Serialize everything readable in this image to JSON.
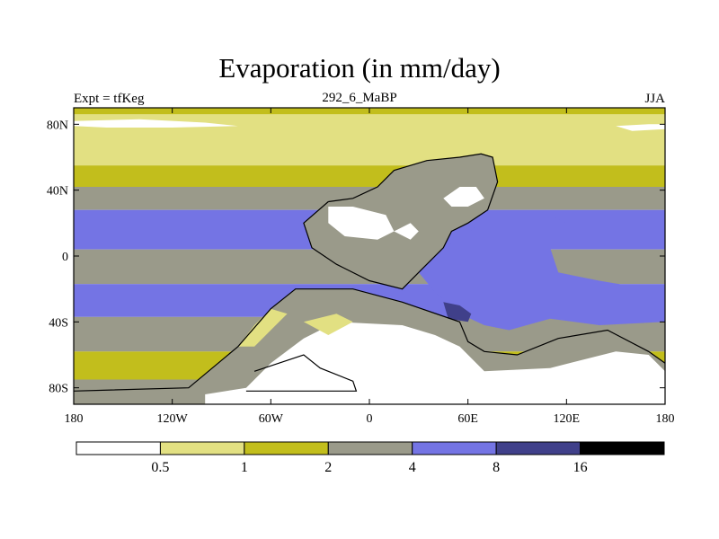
{
  "chart_data": {
    "type": "heatmap",
    "title": "Evaporation (in mm/day)",
    "subtitle_left": "Expt = tfKeg",
    "subtitle_center": "292_6_MaBP",
    "subtitle_right": "JJA",
    "xlim": [
      -180,
      180
    ],
    "ylim": [
      -90,
      90
    ],
    "x_ticks": [
      {
        "value": -180,
        "label": "180"
      },
      {
        "value": -120,
        "label": "120W"
      },
      {
        "value": -60,
        "label": "60W"
      },
      {
        "value": 0,
        "label": "0"
      },
      {
        "value": 60,
        "label": "60E"
      },
      {
        "value": 120,
        "label": "120E"
      },
      {
        "value": 180,
        "label": "180"
      }
    ],
    "y_ticks": [
      {
        "value": 80,
        "label": "80N"
      },
      {
        "value": 40,
        "label": "40N"
      },
      {
        "value": 0,
        "label": "0"
      },
      {
        "value": -40,
        "label": "40S"
      },
      {
        "value": -80,
        "label": "80S"
      }
    ],
    "colorbar": {
      "levels": [
        "0.5",
        "1",
        "2",
        "4",
        "8",
        "16"
      ],
      "colors": [
        "#ffffff",
        "#e2e082",
        "#c2be1c",
        "#9a9a8a",
        "#7474e4",
        "#40408a",
        "#000000"
      ]
    },
    "zonal_bands": [
      {
        "lat_top": 90,
        "lat_bottom": 86,
        "class": 2
      },
      {
        "lat_top": 86,
        "lat_bottom": 75,
        "class": 1
      },
      {
        "lat_top": 75,
        "lat_bottom": 55,
        "class": 1
      },
      {
        "lat_top": 55,
        "lat_bottom": 42,
        "class": 2
      },
      {
        "lat_top": 42,
        "lat_bottom": 28,
        "class": 3
      },
      {
        "lat_top": 28,
        "lat_bottom": 4,
        "class": 4
      },
      {
        "lat_top": 4,
        "lat_bottom": -17,
        "class": 3
      },
      {
        "lat_top": -17,
        "lat_bottom": -37,
        "class": 4
      },
      {
        "lat_top": -37,
        "lat_bottom": -58,
        "class": 3
      },
      {
        "lat_top": -58,
        "lat_bottom": -75,
        "class": 2
      },
      {
        "lat_top": -75,
        "lat_bottom": -84,
        "class": 3
      },
      {
        "lat_top": -84,
        "lat_bottom": -90,
        "class": 0
      }
    ],
    "regions": [
      {
        "name": "arctic-low",
        "class": 0,
        "lonlat": [
          [
            -180,
            82
          ],
          [
            -140,
            83
          ],
          [
            -100,
            81
          ],
          [
            -80,
            79
          ],
          [
            -120,
            78
          ],
          [
            -160,
            78
          ],
          [
            -180,
            79
          ]
        ]
      },
      {
        "name": "arctic-low-east",
        "class": 0,
        "lonlat": [
          [
            150,
            79
          ],
          [
            170,
            80
          ],
          [
            180,
            80
          ],
          [
            180,
            77
          ],
          [
            160,
            76
          ]
        ]
      },
      {
        "name": "land-north",
        "class": 3,
        "lonlat": [
          [
            -25,
            33
          ],
          [
            -10,
            35
          ],
          [
            5,
            42
          ],
          [
            15,
            52
          ],
          [
            35,
            58
          ],
          [
            55,
            60
          ],
          [
            68,
            62
          ],
          [
            75,
            60
          ],
          [
            78,
            45
          ],
          [
            72,
            28
          ],
          [
            60,
            20
          ],
          [
            50,
            15
          ],
          [
            45,
            5
          ],
          [
            30,
            -10
          ],
          [
            20,
            -20
          ],
          [
            0,
            -15
          ],
          [
            -20,
            -5
          ],
          [
            -35,
            5
          ],
          [
            -40,
            20
          ]
        ]
      },
      {
        "name": "land-south",
        "class": 3,
        "lonlat": [
          [
            -45,
            -20
          ],
          [
            -30,
            -20
          ],
          [
            -10,
            -20
          ],
          [
            20,
            -28
          ],
          [
            55,
            -40
          ],
          [
            60,
            -52
          ],
          [
            70,
            -58
          ],
          [
            90,
            -60
          ],
          [
            115,
            -50
          ],
          [
            145,
            -45
          ],
          [
            170,
            -58
          ],
          [
            180,
            -65
          ],
          [
            180,
            -90
          ],
          [
            -180,
            -90
          ],
          [
            -180,
            -80
          ],
          [
            -110,
            -80
          ],
          [
            -80,
            -55
          ],
          [
            -60,
            -32
          ]
        ]
      },
      {
        "name": "ocean-tropic",
        "class": 4,
        "lonlat": [
          [
            30,
            -10
          ],
          [
            45,
            5
          ],
          [
            55,
            10
          ],
          [
            65,
            18
          ],
          [
            78,
            20
          ],
          [
            95,
            25
          ],
          [
            110,
            25
          ],
          [
            120,
            20
          ],
          [
            125,
            15
          ],
          [
            110,
            5
          ],
          [
            115,
            -10
          ],
          [
            140,
            -15
          ],
          [
            170,
            -20
          ],
          [
            180,
            -18
          ],
          [
            180,
            -40
          ],
          [
            140,
            -42
          ],
          [
            110,
            -38
          ],
          [
            85,
            -45
          ],
          [
            70,
            -42
          ],
          [
            55,
            -35
          ],
          [
            40,
            -22
          ]
        ]
      },
      {
        "name": "deep-patch",
        "class": 5,
        "lonlat": [
          [
            45,
            -28
          ],
          [
            55,
            -30
          ],
          [
            62,
            -35
          ],
          [
            60,
            -40
          ],
          [
            48,
            -38
          ]
        ]
      },
      {
        "name": "antarctica-ice",
        "class": 0,
        "lonlat": [
          [
            -75,
            -80
          ],
          [
            -60,
            -65
          ],
          [
            -40,
            -50
          ],
          [
            -20,
            -40
          ],
          [
            20,
            -42
          ],
          [
            40,
            -48
          ],
          [
            55,
            -55
          ],
          [
            70,
            -70
          ],
          [
            110,
            -68
          ],
          [
            150,
            -58
          ],
          [
            170,
            -60
          ],
          [
            180,
            -70
          ],
          [
            180,
            -90
          ],
          [
            -100,
            -90
          ],
          [
            -100,
            -84
          ]
        ]
      },
      {
        "name": "desert-1",
        "class": 0,
        "lonlat": [
          [
            -25,
            30
          ],
          [
            -10,
            30
          ],
          [
            10,
            25
          ],
          [
            15,
            15
          ],
          [
            5,
            10
          ],
          [
            -15,
            12
          ],
          [
            -25,
            20
          ]
        ]
      },
      {
        "name": "desert-2",
        "class": 0,
        "lonlat": [
          [
            45,
            35
          ],
          [
            55,
            42
          ],
          [
            65,
            42
          ],
          [
            70,
            35
          ],
          [
            60,
            30
          ],
          [
            50,
            30
          ]
        ]
      },
      {
        "name": "desert-3",
        "class": 0,
        "lonlat": [
          [
            15,
            15
          ],
          [
            25,
            20
          ],
          [
            30,
            15
          ],
          [
            25,
            10
          ]
        ]
      },
      {
        "name": "yellow-coast-1",
        "class": 1,
        "lonlat": [
          [
            -80,
            -55
          ],
          [
            -70,
            -42
          ],
          [
            -60,
            -32
          ],
          [
            -50,
            -35
          ],
          [
            -60,
            -45
          ],
          [
            -70,
            -55
          ]
        ]
      },
      {
        "name": "yellow-coast-2",
        "class": 1,
        "lonlat": [
          [
            -40,
            -40
          ],
          [
            -20,
            -35
          ],
          [
            -10,
            -40
          ],
          [
            -25,
            -48
          ]
        ]
      }
    ],
    "coastline": [
      [
        -25,
        33
      ],
      [
        -10,
        35
      ],
      [
        5,
        42
      ],
      [
        15,
        52
      ],
      [
        35,
        58
      ],
      [
        55,
        60
      ],
      [
        68,
        62
      ],
      [
        75,
        60
      ],
      [
        78,
        45
      ],
      [
        72,
        28
      ],
      [
        60,
        20
      ],
      [
        50,
        15
      ],
      [
        45,
        5
      ],
      [
        30,
        -10
      ],
      [
        20,
        -20
      ],
      [
        0,
        -15
      ],
      [
        -20,
        -5
      ],
      [
        -35,
        5
      ],
      [
        -40,
        20
      ],
      [
        -25,
        33
      ]
    ],
    "coastline_south": [
      [
        -180,
        -82
      ],
      [
        -110,
        -80
      ],
      [
        -80,
        -55
      ],
      [
        -60,
        -32
      ],
      [
        -45,
        -20
      ],
      [
        -30,
        -20
      ],
      [
        -10,
        -20
      ],
      [
        20,
        -28
      ],
      [
        55,
        -40
      ],
      [
        60,
        -52
      ],
      [
        70,
        -58
      ],
      [
        90,
        -60
      ],
      [
        115,
        -50
      ],
      [
        145,
        -45
      ],
      [
        170,
        -58
      ],
      [
        180,
        -65
      ]
    ],
    "ice_outline": [
      [
        -70,
        -70
      ],
      [
        -55,
        -65
      ],
      [
        -40,
        -60
      ],
      [
        -30,
        -68
      ],
      [
        -10,
        -76
      ],
      [
        -8,
        -82
      ],
      [
        -75,
        -82
      ]
    ]
  }
}
